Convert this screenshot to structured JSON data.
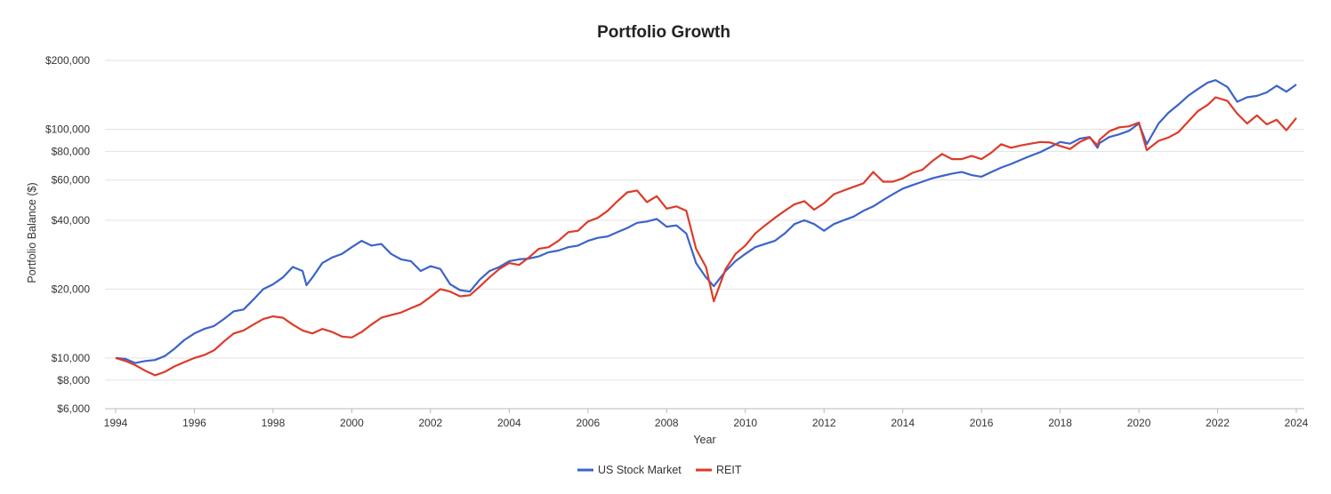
{
  "chart_data": {
    "type": "line",
    "title": "Portfolio Growth",
    "xlabel": "Year",
    "ylabel": "Portfolio Balance ($)",
    "yscale": "log",
    "xlim": [
      1994,
      2024
    ],
    "ylim": [
      6000,
      200000
    ],
    "grid": true,
    "legend_position": "bottom-center",
    "x_ticks": [
      "1994",
      "1996",
      "1998",
      "2000",
      "2002",
      "2004",
      "2006",
      "2008",
      "2010",
      "2012",
      "2014",
      "2016",
      "2018",
      "2020",
      "2022",
      "2024"
    ],
    "y_ticks": [
      {
        "value": 6000,
        "label": "$6,000"
      },
      {
        "value": 8000,
        "label": "$8,000"
      },
      {
        "value": 10000,
        "label": "$10,000"
      },
      {
        "value": 20000,
        "label": "$20,000"
      },
      {
        "value": 40000,
        "label": "$40,000"
      },
      {
        "value": 60000,
        "label": "$60,000"
      },
      {
        "value": 80000,
        "label": "$80,000"
      },
      {
        "value": 100000,
        "label": "$100,000"
      },
      {
        "value": 200000,
        "label": "$200,000"
      }
    ],
    "series": [
      {
        "name": "US Stock Market",
        "color": "#3b64c8",
        "points": [
          [
            1994.0,
            10000
          ],
          [
            1994.25,
            9900
          ],
          [
            1994.5,
            9500
          ],
          [
            1994.75,
            9700
          ],
          [
            1995.0,
            9800
          ],
          [
            1995.25,
            10200
          ],
          [
            1995.5,
            11000
          ],
          [
            1995.75,
            12000
          ],
          [
            1996.0,
            12800
          ],
          [
            1996.25,
            13400
          ],
          [
            1996.5,
            13800
          ],
          [
            1996.75,
            14800
          ],
          [
            1997.0,
            16000
          ],
          [
            1997.25,
            16300
          ],
          [
            1997.5,
            18000
          ],
          [
            1997.75,
            20000
          ],
          [
            1998.0,
            21000
          ],
          [
            1998.25,
            22500
          ],
          [
            1998.5,
            25000
          ],
          [
            1998.75,
            24000
          ],
          [
            1998.85,
            20800
          ],
          [
            1999.0,
            22500
          ],
          [
            1999.25,
            26000
          ],
          [
            1999.5,
            27500
          ],
          [
            1999.75,
            28500
          ],
          [
            2000.0,
            30500
          ],
          [
            2000.25,
            32500
          ],
          [
            2000.5,
            31000
          ],
          [
            2000.75,
            31500
          ],
          [
            2001.0,
            28500
          ],
          [
            2001.25,
            27000
          ],
          [
            2001.5,
            26500
          ],
          [
            2001.75,
            24000
          ],
          [
            2002.0,
            25200
          ],
          [
            2002.25,
            24500
          ],
          [
            2002.5,
            21000
          ],
          [
            2002.75,
            19800
          ],
          [
            2003.0,
            19500
          ],
          [
            2003.25,
            22000
          ],
          [
            2003.5,
            24000
          ],
          [
            2003.75,
            25000
          ],
          [
            2004.0,
            26500
          ],
          [
            2004.25,
            27000
          ],
          [
            2004.5,
            27200
          ],
          [
            2004.75,
            27800
          ],
          [
            2005.0,
            29000
          ],
          [
            2005.25,
            29500
          ],
          [
            2005.5,
            30500
          ],
          [
            2005.75,
            31000
          ],
          [
            2006.0,
            32500
          ],
          [
            2006.25,
            33500
          ],
          [
            2006.5,
            34000
          ],
          [
            2006.75,
            35500
          ],
          [
            2007.0,
            37000
          ],
          [
            2007.25,
            39000
          ],
          [
            2007.5,
            39500
          ],
          [
            2007.75,
            40500
          ],
          [
            2008.0,
            37500
          ],
          [
            2008.25,
            38000
          ],
          [
            2008.5,
            35000
          ],
          [
            2008.75,
            26000
          ],
          [
            2009.0,
            22500
          ],
          [
            2009.2,
            20600
          ],
          [
            2009.5,
            24000
          ],
          [
            2009.75,
            26500
          ],
          [
            2010.0,
            28500
          ],
          [
            2010.25,
            30500
          ],
          [
            2010.5,
            31500
          ],
          [
            2010.75,
            32500
          ],
          [
            2011.0,
            35000
          ],
          [
            2011.25,
            38500
          ],
          [
            2011.5,
            40000
          ],
          [
            2011.75,
            38500
          ],
          [
            2012.0,
            36000
          ],
          [
            2012.25,
            38500
          ],
          [
            2012.5,
            40000
          ],
          [
            2012.75,
            41500
          ],
          [
            2013.0,
            44000
          ],
          [
            2013.25,
            46000
          ],
          [
            2013.5,
            49000
          ],
          [
            2013.75,
            52000
          ],
          [
            2014.0,
            55000
          ],
          [
            2014.25,
            57000
          ],
          [
            2014.5,
            59000
          ],
          [
            2014.75,
            61000
          ],
          [
            2015.0,
            62500
          ],
          [
            2015.25,
            64000
          ],
          [
            2015.5,
            65000
          ],
          [
            2015.75,
            63000
          ],
          [
            2016.0,
            62000
          ],
          [
            2016.25,
            65000
          ],
          [
            2016.5,
            68000
          ],
          [
            2016.75,
            70500
          ],
          [
            2017.0,
            73500
          ],
          [
            2017.25,
            76500
          ],
          [
            2017.5,
            79500
          ],
          [
            2017.75,
            83500
          ],
          [
            2018.0,
            88000
          ],
          [
            2018.25,
            86500
          ],
          [
            2018.5,
            91000
          ],
          [
            2018.75,
            92500
          ],
          [
            2018.95,
            83000
          ],
          [
            2019.0,
            87000
          ],
          [
            2019.25,
            92500
          ],
          [
            2019.5,
            95000
          ],
          [
            2019.75,
            98500
          ],
          [
            2020.0,
            106000
          ],
          [
            2020.2,
            86000
          ],
          [
            2020.5,
            106000
          ],
          [
            2020.75,
            118000
          ],
          [
            2021.0,
            128000
          ],
          [
            2021.25,
            140000
          ],
          [
            2021.5,
            150000
          ],
          [
            2021.75,
            160000
          ],
          [
            2021.95,
            164000
          ],
          [
            2022.25,
            153000
          ],
          [
            2022.5,
            132000
          ],
          [
            2022.75,
            138000
          ],
          [
            2023.0,
            140000
          ],
          [
            2023.25,
            145000
          ],
          [
            2023.5,
            155000
          ],
          [
            2023.75,
            146000
          ],
          [
            2024.0,
            157000
          ]
        ]
      },
      {
        "name": "REIT",
        "color": "#dc3b2a",
        "points": [
          [
            1994.0,
            10000
          ],
          [
            1994.25,
            9700
          ],
          [
            1994.5,
            9300
          ],
          [
            1994.75,
            8800
          ],
          [
            1995.0,
            8400
          ],
          [
            1995.25,
            8700
          ],
          [
            1995.5,
            9200
          ],
          [
            1995.75,
            9600
          ],
          [
            1996.0,
            10000
          ],
          [
            1996.25,
            10300
          ],
          [
            1996.5,
            10800
          ],
          [
            1996.75,
            11800
          ],
          [
            1997.0,
            12800
          ],
          [
            1997.25,
            13200
          ],
          [
            1997.5,
            14000
          ],
          [
            1997.75,
            14800
          ],
          [
            1998.0,
            15200
          ],
          [
            1998.25,
            15000
          ],
          [
            1998.5,
            14000
          ],
          [
            1998.75,
            13200
          ],
          [
            1999.0,
            12800
          ],
          [
            1999.25,
            13400
          ],
          [
            1999.5,
            13000
          ],
          [
            1999.75,
            12400
          ],
          [
            2000.0,
            12300
          ],
          [
            2000.25,
            13000
          ],
          [
            2000.5,
            14000
          ],
          [
            2000.75,
            15000
          ],
          [
            2001.0,
            15400
          ],
          [
            2001.25,
            15800
          ],
          [
            2001.5,
            16500
          ],
          [
            2001.75,
            17200
          ],
          [
            2002.0,
            18500
          ],
          [
            2002.25,
            20000
          ],
          [
            2002.5,
            19500
          ],
          [
            2002.75,
            18600
          ],
          [
            2003.0,
            18800
          ],
          [
            2003.25,
            20500
          ],
          [
            2003.5,
            22500
          ],
          [
            2003.75,
            24500
          ],
          [
            2004.0,
            26000
          ],
          [
            2004.25,
            25500
          ],
          [
            2004.5,
            27500
          ],
          [
            2004.75,
            30000
          ],
          [
            2005.0,
            30500
          ],
          [
            2005.25,
            32500
          ],
          [
            2005.5,
            35500
          ],
          [
            2005.75,
            36000
          ],
          [
            2006.0,
            39500
          ],
          [
            2006.25,
            41000
          ],
          [
            2006.5,
            44000
          ],
          [
            2006.75,
            48500
          ],
          [
            2007.0,
            53000
          ],
          [
            2007.25,
            54000
          ],
          [
            2007.5,
            48000
          ],
          [
            2007.75,
            51000
          ],
          [
            2008.0,
            45000
          ],
          [
            2008.25,
            46000
          ],
          [
            2008.5,
            44000
          ],
          [
            2008.75,
            30000
          ],
          [
            2009.0,
            25000
          ],
          [
            2009.2,
            17700
          ],
          [
            2009.5,
            24500
          ],
          [
            2009.75,
            28500
          ],
          [
            2010.0,
            31000
          ],
          [
            2010.25,
            35000
          ],
          [
            2010.5,
            38000
          ],
          [
            2010.75,
            41000
          ],
          [
            2011.0,
            44000
          ],
          [
            2011.25,
            47000
          ],
          [
            2011.5,
            48500
          ],
          [
            2011.75,
            44500
          ],
          [
            2012.0,
            47500
          ],
          [
            2012.25,
            52000
          ],
          [
            2012.5,
            54000
          ],
          [
            2012.75,
            56000
          ],
          [
            2013.0,
            58000
          ],
          [
            2013.25,
            65000
          ],
          [
            2013.5,
            59000
          ],
          [
            2013.75,
            59000
          ],
          [
            2014.0,
            61000
          ],
          [
            2014.25,
            64500
          ],
          [
            2014.5,
            66500
          ],
          [
            2014.75,
            72500
          ],
          [
            2015.0,
            78000
          ],
          [
            2015.25,
            74000
          ],
          [
            2015.5,
            74000
          ],
          [
            2015.75,
            76500
          ],
          [
            2016.0,
            74000
          ],
          [
            2016.25,
            79000
          ],
          [
            2016.5,
            86000
          ],
          [
            2016.75,
            83000
          ],
          [
            2017.0,
            85000
          ],
          [
            2017.25,
            86500
          ],
          [
            2017.5,
            88000
          ],
          [
            2017.75,
            87500
          ],
          [
            2018.0,
            84500
          ],
          [
            2018.25,
            82000
          ],
          [
            2018.5,
            88000
          ],
          [
            2018.75,
            92000
          ],
          [
            2018.95,
            85000
          ],
          [
            2019.0,
            90000
          ],
          [
            2019.25,
            98000
          ],
          [
            2019.5,
            102000
          ],
          [
            2019.75,
            103000
          ],
          [
            2020.0,
            107000
          ],
          [
            2020.2,
            81000
          ],
          [
            2020.5,
            89000
          ],
          [
            2020.75,
            92000
          ],
          [
            2021.0,
            97000
          ],
          [
            2021.25,
            108000
          ],
          [
            2021.5,
            120000
          ],
          [
            2021.75,
            128000
          ],
          [
            2021.95,
            138000
          ],
          [
            2022.25,
            133000
          ],
          [
            2022.5,
            117000
          ],
          [
            2022.75,
            106000
          ],
          [
            2023.0,
            115000
          ],
          [
            2023.25,
            105000
          ],
          [
            2023.5,
            110000
          ],
          [
            2023.75,
            99000
          ],
          [
            2024.0,
            112000
          ]
        ]
      }
    ]
  }
}
